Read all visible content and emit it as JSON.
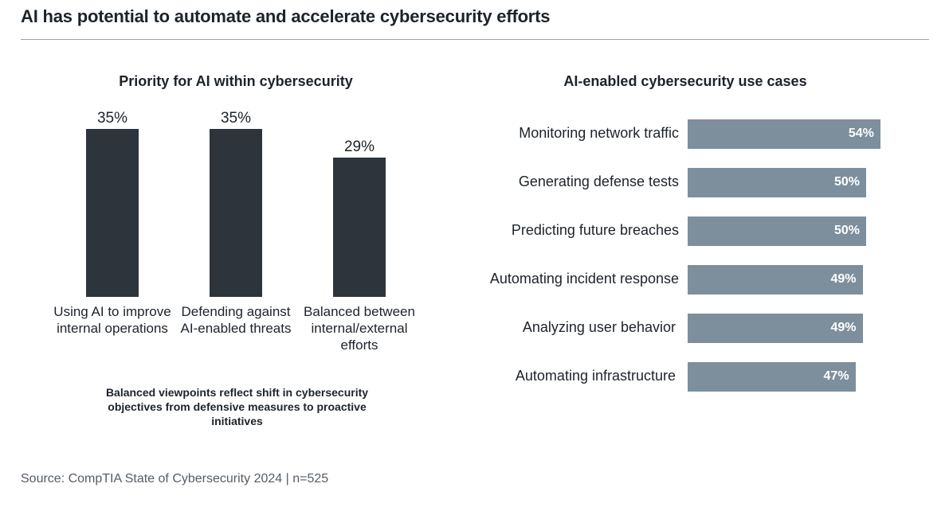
{
  "title": "AI has potential to automate and accelerate cybersecurity efforts",
  "source": "Source: CompTIA State of Cybersecurity 2024 | n=525",
  "note": "Balanced viewpoints reflect shift in cybersecurity objectives from defensive measures to proactive initiatives",
  "chart_data": [
    {
      "type": "bar",
      "title": "Priority for AI within cybersecurity",
      "categories": [
        "Using AI to improve internal operations",
        "Defending against AI-enabled threats",
        "Balanced between internal/external efforts"
      ],
      "values": [
        35,
        35,
        29
      ],
      "labels": [
        "35%",
        "35%",
        "29%"
      ],
      "color": "#2d343c",
      "grid": false
    },
    {
      "type": "bar",
      "orientation": "horizontal",
      "title": "AI-enabled cybersecurity use cases",
      "categories": [
        "Monitoring network traffic",
        "Generating defense tests",
        "Predicting future breaches",
        "Automating incident response",
        "Analyzing user behavior",
        "Automating infrastructure"
      ],
      "values": [
        54,
        50,
        50,
        49,
        49,
        47
      ],
      "labels": [
        "54%",
        "50%",
        "50%",
        "49%",
        "49%",
        "47%"
      ],
      "color": "#7d8f9d",
      "grid": false
    }
  ]
}
